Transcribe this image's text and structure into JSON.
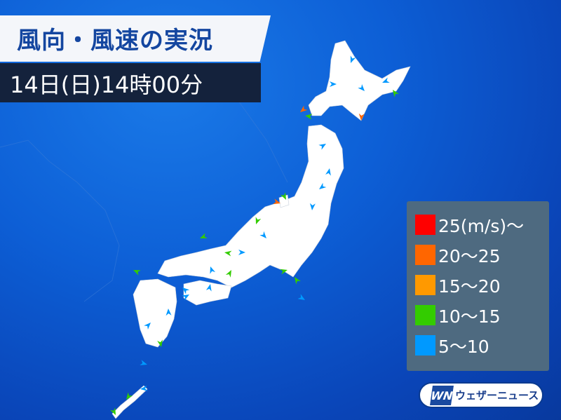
{
  "header": {
    "title": "風向・風速の実況",
    "datetime": "14日(日)14時00分"
  },
  "legend": {
    "items": [
      {
        "label": "25(m/s)〜",
        "color": "#ff0000"
      },
      {
        "label": "20〜25",
        "color": "#ff6600"
      },
      {
        "label": "15〜20",
        "color": "#ff9900"
      },
      {
        "label": "10〜15",
        "color": "#33cc00"
      },
      {
        "label": "5〜10",
        "color": "#0099ff"
      }
    ]
  },
  "logo": {
    "mark": "WN",
    "text": "ウェザーニュース"
  }
}
